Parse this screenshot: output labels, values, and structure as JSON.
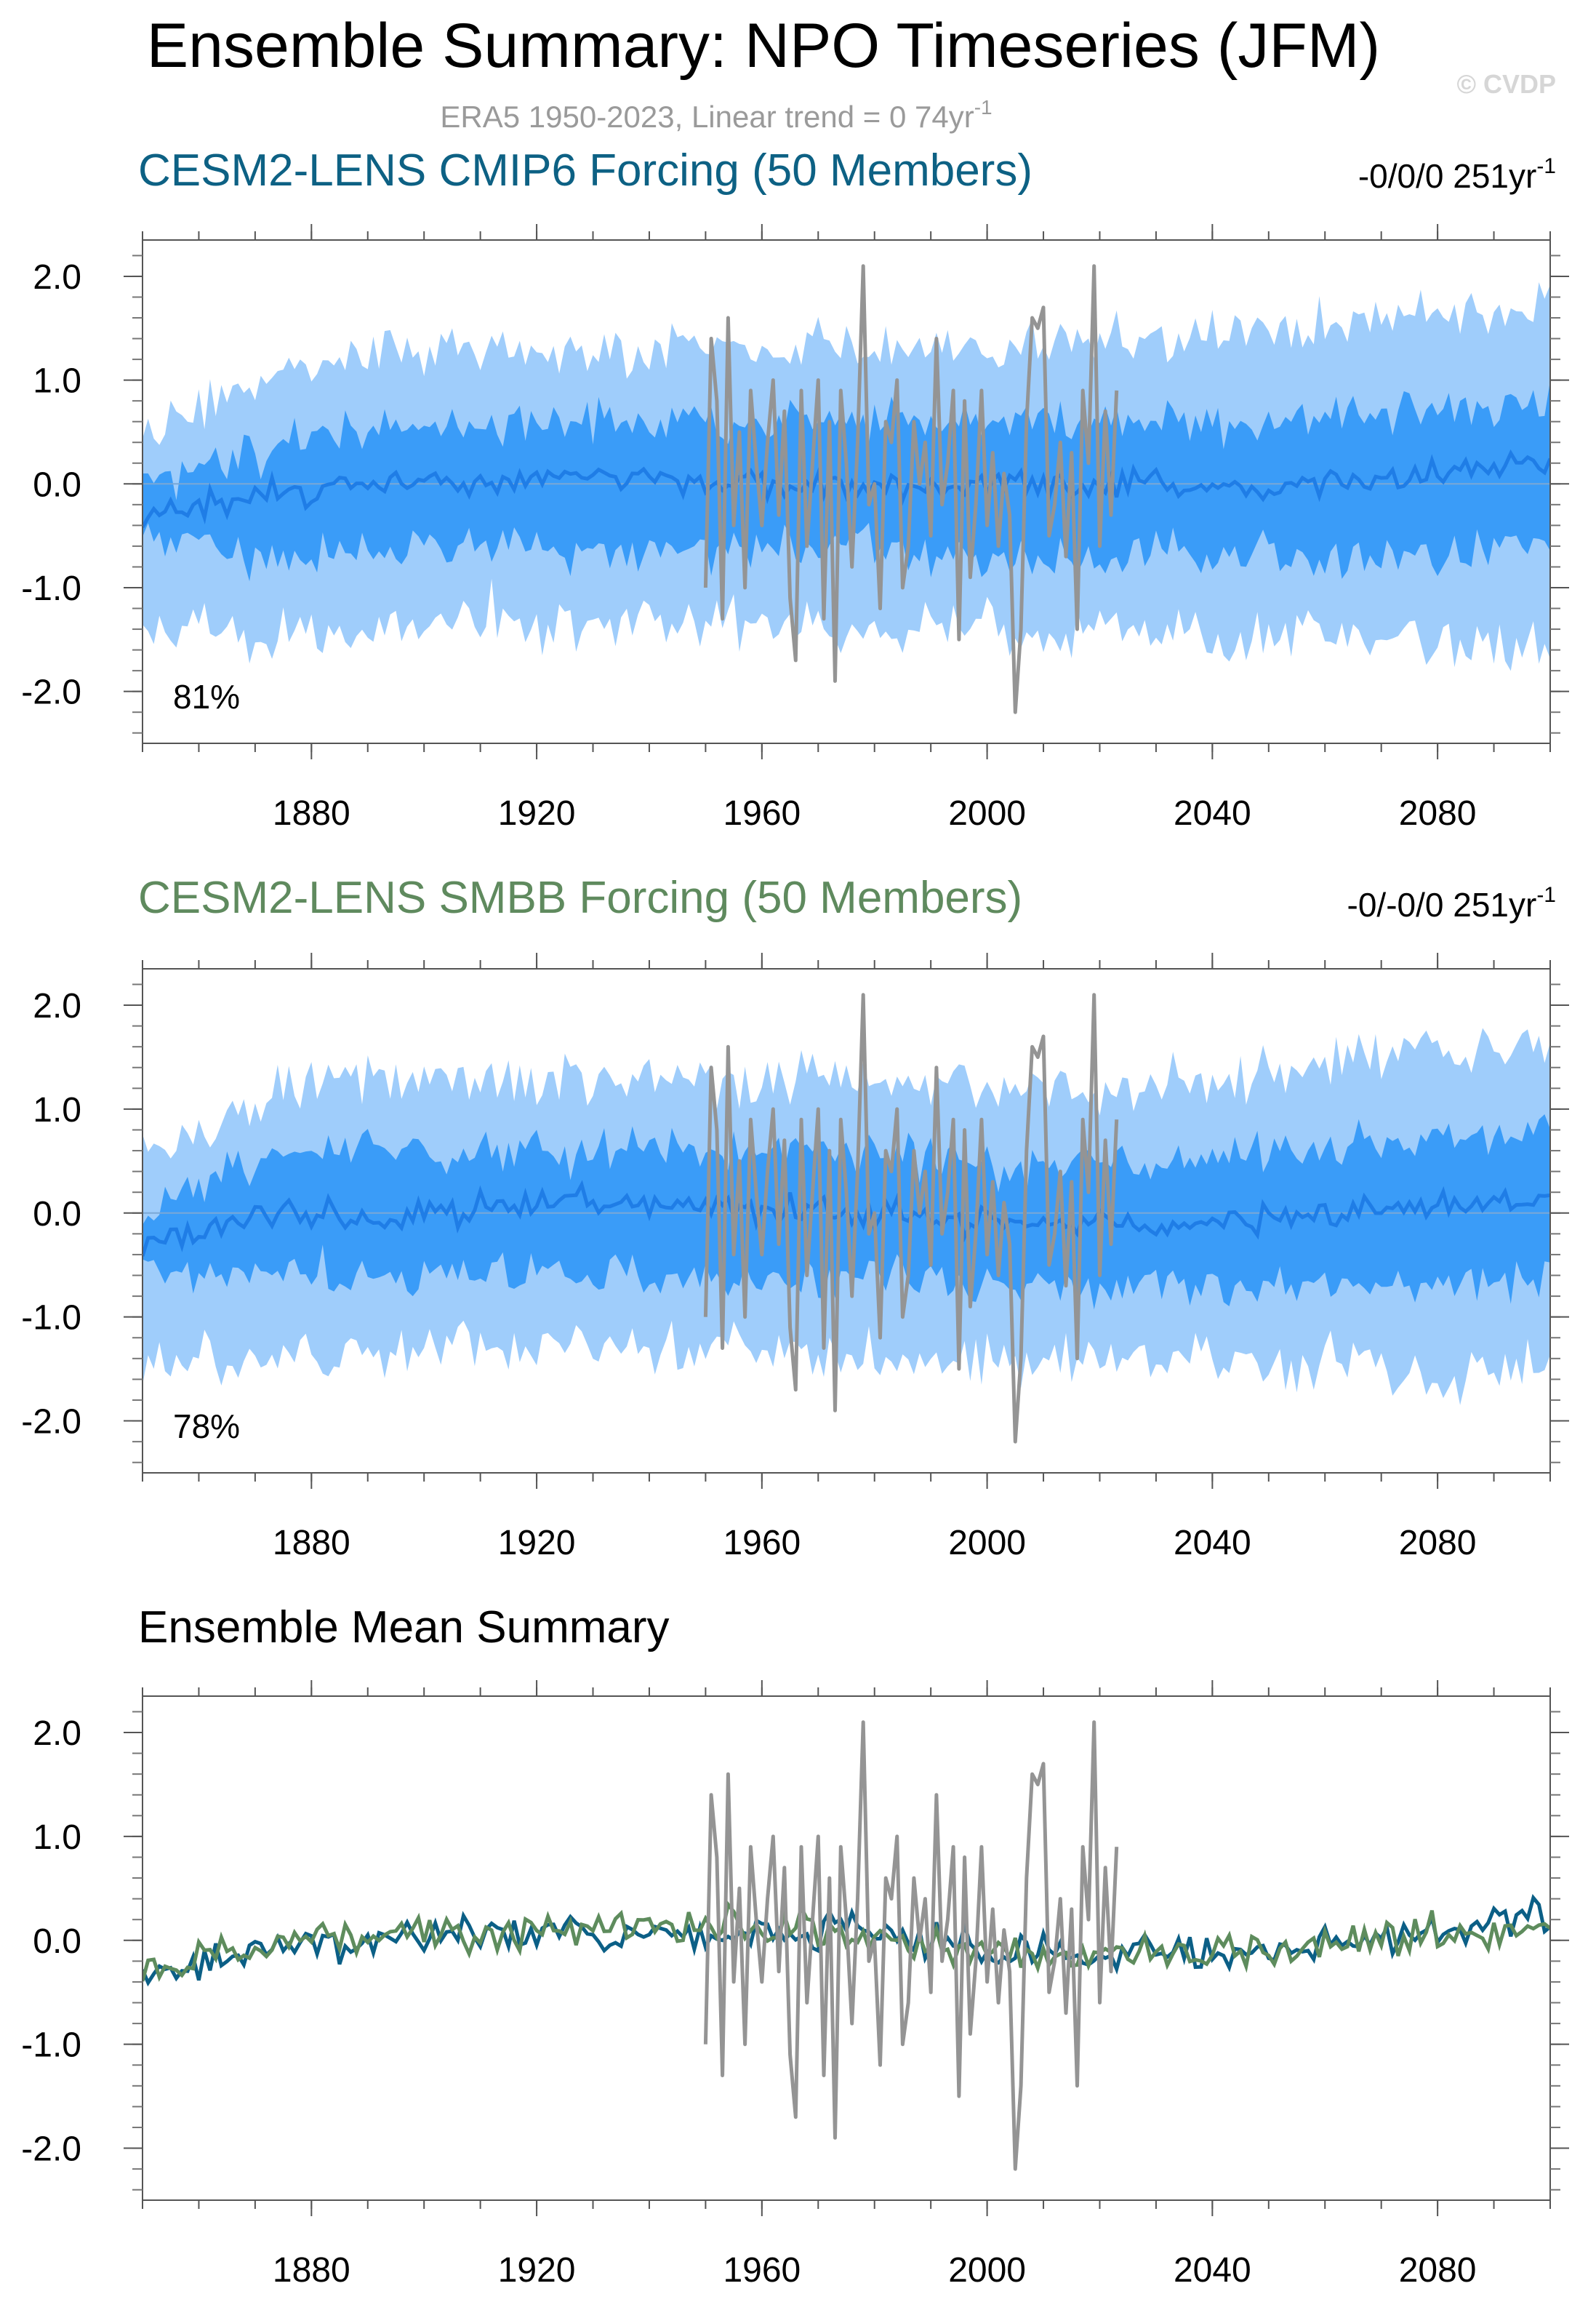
{
  "title": "Ensemble Summary: NPO Timeseries (JFM)",
  "watermark": "© CVDP",
  "subtitle": {
    "text": "ERA5 1950-2023, Linear trend = 0 74yr",
    "sup": "-1"
  },
  "colors": {
    "band_outer": "#9fcdfb",
    "band_inner": "#3a9cf8",
    "ens_mean_line": "#1f7de6",
    "obs_line": "#949494",
    "cmip6_title": "#0d6184",
    "smbb_title": "#5f8a5e",
    "cmip6_mean": "#0b5f86",
    "smbb_mean": "#5e8c5d"
  },
  "panels": [
    {
      "title": "CESM2-LENS CMIP6 Forcing (50 Members)",
      "trend": {
        "text": "-0/0/0 251yr",
        "sup": "-1"
      },
      "percent": "81%"
    },
    {
      "title": "CESM2-LENS SMBB Forcing (50 Members)",
      "trend": {
        "text": "-0/-0/0 251yr",
        "sup": "-1"
      },
      "percent": "78%"
    },
    {
      "title": "Ensemble Mean Summary"
    }
  ],
  "chart_data": [
    {
      "type": "area",
      "x_range": [
        1850,
        2100
      ],
      "ylim": [
        -2.5,
        2.35
      ],
      "x_ticks": [
        "1880",
        "1920",
        "1960",
        "2000",
        "2040",
        "2080"
      ],
      "y_ticks": [
        "2.0",
        "1.0",
        "0.0",
        "-1.0",
        "-2.0"
      ],
      "series": [
        {
          "values_by_year": {
            "1850": [
              -1.4,
              -0.5,
              -0.3,
              0.0,
              0.5
            ],
            "1875": [
              -1.5,
              -0.7,
              -0.1,
              0.4,
              1.1
            ],
            "1900": [
              -1.3,
              -0.6,
              0.0,
              0.6,
              1.3
            ],
            "1925": [
              -1.3,
              -0.6,
              0.1,
              0.6,
              1.3
            ],
            "1950": [
              -1.3,
              -0.6,
              0.0,
              0.6,
              1.3
            ],
            "1975": [
              -1.4,
              -0.6,
              0.0,
              0.6,
              1.3
            ],
            "2000": [
              -1.4,
              -0.7,
              0.0,
              0.6,
              1.3
            ],
            "2025": [
              -1.4,
              -0.7,
              0.0,
              0.6,
              1.4
            ],
            "2050": [
              -1.5,
              -0.7,
              -0.05,
              0.6,
              1.5
            ],
            "2075": [
              -1.5,
              -0.7,
              0.05,
              0.7,
              1.6
            ],
            "2100": [
              -1.6,
              -0.6,
              0.2,
              0.8,
              1.7
            ]
          }
        }
      ]
    },
    {
      "type": "area",
      "x_range": [
        1850,
        2100
      ],
      "ylim": [
        -2.5,
        2.35
      ],
      "x_ticks": [
        "1880",
        "1920",
        "1960",
        "2000",
        "2040",
        "2080"
      ],
      "y_ticks": [
        "2.0",
        "1.0",
        "0.0",
        "-1.0",
        "-2.0"
      ],
      "series": [
        {
          "values_by_year": {
            "1850": [
              -1.5,
              -0.6,
              -0.3,
              0.0,
              0.5
            ],
            "1875": [
              -1.4,
              -0.6,
              0.0,
              0.6,
              1.2
            ],
            "1900": [
              -1.3,
              -0.6,
              0.0,
              0.6,
              1.3
            ],
            "1925": [
              -1.3,
              -0.6,
              0.1,
              0.6,
              1.3
            ],
            "1950": [
              -1.3,
              -0.6,
              0.05,
              0.6,
              1.3
            ],
            "1975": [
              -1.4,
              -0.6,
              0.0,
              0.6,
              1.3
            ],
            "2000": [
              -1.4,
              -0.7,
              -0.1,
              0.5,
              1.2
            ],
            "2025": [
              -1.4,
              -0.7,
              -0.1,
              0.5,
              1.2
            ],
            "2050": [
              -1.4,
              -0.7,
              -0.05,
              0.6,
              1.4
            ],
            "2075": [
              -1.5,
              -0.7,
              0.05,
              0.7,
              1.6
            ],
            "2100": [
              -1.5,
              -0.6,
              0.15,
              0.8,
              1.6
            ]
          }
        }
      ]
    },
    {
      "type": "line",
      "x_range": [
        1850,
        2100
      ],
      "ylim": [
        -2.5,
        2.35
      ],
      "x_ticks": [
        "1880",
        "1920",
        "1960",
        "2000",
        "2040",
        "2080"
      ],
      "y_ticks": [
        "2.0",
        "1.0",
        "0.0",
        "-1.0",
        "-2.0"
      ],
      "series": [
        {
          "values_by_year": {
            "1850": -0.35,
            "1875": -0.05,
            "1900": 0.05,
            "1925": 0.1,
            "1950": 0.05,
            "1975": 0.1,
            "2000": -0.05,
            "2025": -0.15,
            "2050": -0.1,
            "2075": 0.05,
            "2100": 0.25
          }
        },
        {
          "values_by_year": {
            "1850": -0.3,
            "1875": 0.0,
            "1900": 0.05,
            "1925": 0.1,
            "1950": 0.15,
            "1975": 0.05,
            "2000": -0.1,
            "2025": -0.15,
            "2050": -0.1,
            "2075": 0.05,
            "2100": 0.15
          }
        }
      ],
      "obs": {
        "x_range": [
          1950,
          2023
        ],
        "values": [
          -1.0,
          1.4,
          0.8,
          -1.3,
          1.6,
          -0.4,
          0.5,
          -1.0,
          0.9,
          0.2,
          -0.4,
          0.4,
          1.0,
          -0.3,
          0.7,
          -1.1,
          -1.7,
          0.9,
          -0.6,
          0.2,
          1.0,
          -1.3,
          0.6,
          -1.9,
          0.9,
          0.2,
          -0.8,
          0.4,
          2.1,
          -0.2,
          0.0,
          -1.2,
          0.6,
          0.4,
          1.0,
          -1.0,
          -0.6,
          0.6,
          0.0,
          0.4,
          -0.5,
          1.4,
          -0.2,
          0.2,
          0.9,
          -1.5,
          0.8,
          -0.9,
          -0.2,
          0.9,
          -0.4,
          0.3,
          -0.6,
          0.1,
          -0.3,
          -2.2,
          -1.4,
          0.6,
          1.6,
          1.5,
          1.7,
          -0.5,
          -0.2,
          0.4,
          -0.7,
          0.3,
          -1.4,
          0.9,
          0.2,
          2.1,
          -0.6,
          0.7,
          -0.3,
          0.9
        ]
      }
    }
  ]
}
